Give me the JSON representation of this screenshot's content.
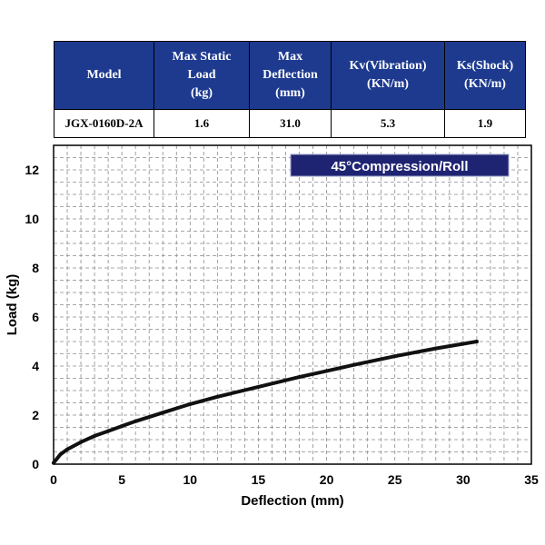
{
  "spec_table": {
    "headers": [
      [
        "Model"
      ],
      [
        "Max Static",
        "Load",
        "(kg)"
      ],
      [
        "Max",
        "Deflection",
        "(mm)"
      ],
      [
        "Kv(Vibration)",
        "(KN/m)"
      ],
      [
        "Ks(Shock)",
        "(KN/m)"
      ]
    ],
    "row": [
      "JGX-0160D-2A",
      "1.6",
      "31.0",
      "5.3",
      "1.9"
    ]
  },
  "colors": {
    "header_bg": "#1d3a8f",
    "badge_bg": "#1f2472",
    "curve": "#111111"
  },
  "chart_data": {
    "type": "line",
    "badge": "45°Compression/Roll",
    "xlabel": "Deflection (mm)",
    "ylabel": "Load (kg)",
    "xlim": [
      0,
      35
    ],
    "ylim": [
      0,
      13
    ],
    "xticks": [
      0,
      5,
      10,
      15,
      20,
      25,
      30,
      35
    ],
    "yticks": [
      0,
      2,
      4,
      6,
      8,
      10,
      12
    ],
    "grid": true,
    "series": [
      {
        "x": [
          0,
          0.5,
          1,
          2,
          3,
          4,
          5,
          6,
          8,
          10,
          12,
          15,
          18,
          20,
          22,
          25,
          28,
          31
        ],
        "y": [
          0.05,
          0.4,
          0.6,
          0.9,
          1.15,
          1.35,
          1.55,
          1.75,
          2.1,
          2.45,
          2.75,
          3.15,
          3.55,
          3.8,
          4.05,
          4.4,
          4.72,
          5.0
        ]
      }
    ]
  }
}
